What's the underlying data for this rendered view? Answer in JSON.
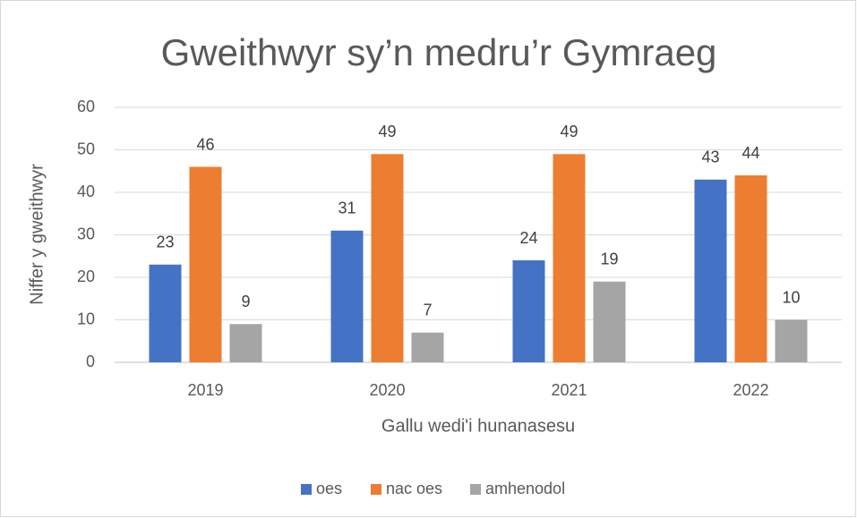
{
  "chart_data": {
    "type": "bar",
    "title": "Gweithwyr sy’n medru’r Gymraeg",
    "x_label": "Gallu wedi'i hunanasesu",
    "y_label": "Niffer y gweithwyr",
    "categories": [
      "2019",
      "2020",
      "2021",
      "2022"
    ],
    "series": [
      {
        "name": "oes",
        "color": "#4472c4",
        "values": [
          23,
          31,
          24,
          43
        ]
      },
      {
        "name": "nac oes",
        "color": "#ed7d31",
        "values": [
          46,
          49,
          49,
          44
        ]
      },
      {
        "name": "amhenodol",
        "color": "#a5a5a5",
        "values": [
          9,
          7,
          19,
          10
        ]
      }
    ],
    "ylim": [
      0,
      60
    ],
    "yticks": [
      0,
      10,
      20,
      30,
      40,
      50,
      60
    ],
    "grid": true,
    "legend": "bottom"
  }
}
